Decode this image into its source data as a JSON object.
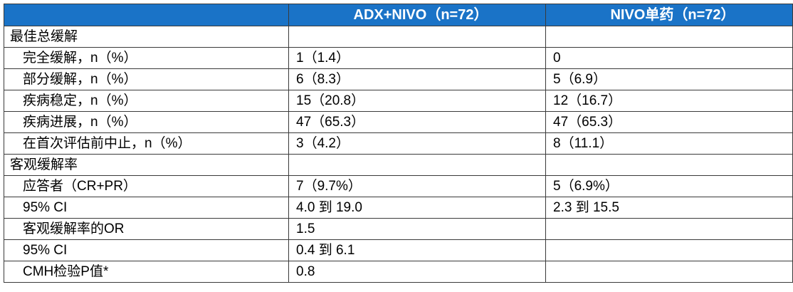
{
  "header": {
    "corner": "",
    "col_adx": "ADX+NIVO（n=72）",
    "col_nivo": "NIVO单药（n=72）"
  },
  "rows": [
    {
      "label": "最佳总缓解",
      "adx": "",
      "nivo": ""
    },
    {
      "label": "完全缓解，n（%）",
      "adx": "1（1.4）",
      "nivo": "0"
    },
    {
      "label": "部分缓解，n（%）",
      "adx": "6（8.3）",
      "nivo": "5（6.9）"
    },
    {
      "label": "疾病稳定，n（%）",
      "adx": "15（20.8）",
      "nivo": "12（16.7）"
    },
    {
      "label": "疾病进展，n（%）",
      "adx": "47（65.3）",
      "nivo": "47（65.3）"
    },
    {
      "label": "在首次评估前中止，n（%）",
      "adx": "3（4.2）",
      "nivo": "8（11.1）"
    },
    {
      "label": "客观缓解率",
      "adx": "",
      "nivo": ""
    },
    {
      "label": "应答者（CR+PR）",
      "adx": "7（9.7%）",
      "nivo": "5（6.9%）"
    },
    {
      "label": "95% CI",
      "adx": "4.0 到 19.0",
      "nivo": "2.3 到 15.5"
    },
    {
      "label": "客观缓解率的OR",
      "adx": "1.5",
      "nivo": ""
    },
    {
      "label": "95% CI",
      "adx": "0.4 到 6.1",
      "nivo": ""
    },
    {
      "label": "CMH检验P值*",
      "adx": "0.8",
      "nivo": ""
    }
  ],
  "colors": {
    "header_bg": "#1a73c7",
    "header_text": "#ffffff",
    "border": "#3a3a3a"
  }
}
